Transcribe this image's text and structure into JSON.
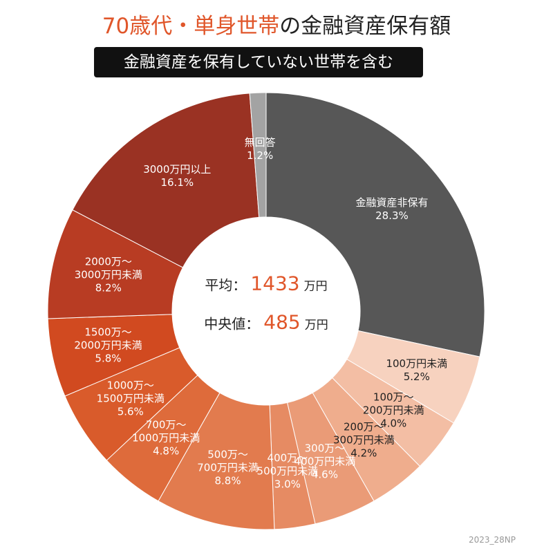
{
  "chart_data": {
    "type": "donut",
    "title": [
      "70歳代・単身世帯",
      "の金融資産保有額"
    ],
    "subtitle": "金融資産を保有していない世帯を含む",
    "categories": [
      "金融資産非保有",
      "100万円未満",
      "100万～\n200万円未満",
      "200万～\n300万円未満",
      "300万～\n400万円未満",
      "400万～\n500万円未満",
      "500万～\n700万円未満",
      "700万～\n1000万円未満",
      "1000万～\n1500万円未満",
      "1500万～\n2000万円未満",
      "2000万～\n3000万円未満",
      "3000万円以上",
      "無回答"
    ],
    "values": [
      28.3,
      5.2,
      4.0,
      4.2,
      4.6,
      3.0,
      8.8,
      4.8,
      5.6,
      5.8,
      8.2,
      16.1,
      1.2
    ],
    "value_labels": [
      "28.3%",
      "5.2%",
      "4.0%",
      "4.2%",
      "4.6%",
      "3.0%",
      "8.8%",
      "4.8%",
      "5.6%",
      "5.8%",
      "8.2%",
      "16.1%",
      "1.2%"
    ],
    "colors": [
      "#575757",
      "#f7d2bf",
      "#f3bea4",
      "#efad8d",
      "#ea9b77",
      "#e68b63",
      "#e27b4e",
      "#de6b3b",
      "#d95b2b",
      "#d14a20",
      "#b83c23",
      "#9a3223",
      "#a3a3a3"
    ],
    "center": [
      {
        "label": "平均：",
        "value": 1433,
        "unit": "万円"
      },
      {
        "label": "中央値：",
        "value": 485,
        "unit": "万円"
      }
    ],
    "credit": "2023_28NP"
  }
}
